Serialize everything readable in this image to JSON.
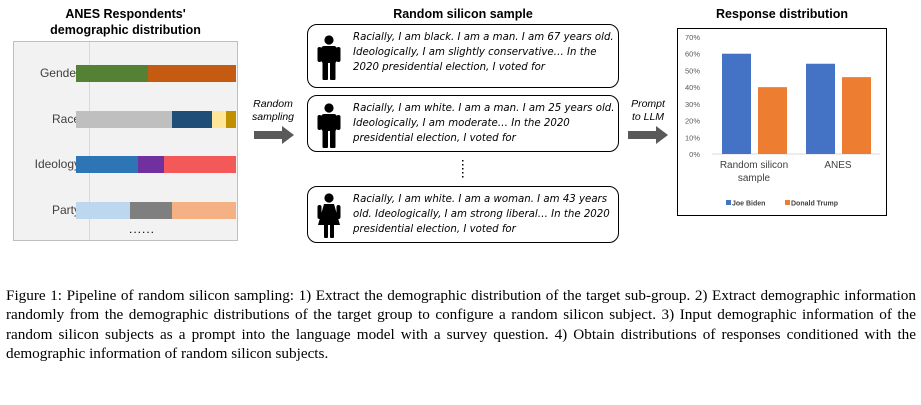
{
  "left": {
    "title_line1": "ANES Respondents'",
    "title_line2": "demographic distribution",
    "rows": [
      {
        "label": "Gender",
        "segments": [
          {
            "share": 0.45,
            "color": "#548235"
          },
          {
            "share": 0.55,
            "color": "#c55a11"
          }
        ]
      },
      {
        "label": "Race",
        "segments": [
          {
            "share": 0.6,
            "color": "#bfbfbf"
          },
          {
            "share": 0.25,
            "color": "#1f4e79"
          },
          {
            "share": 0.09,
            "color": "#ffe699"
          },
          {
            "share": 0.06,
            "color": "#bf9000"
          }
        ]
      },
      {
        "label": "Ideology",
        "segments": [
          {
            "share": 0.39,
            "color": "#2e75b6"
          },
          {
            "share": 0.16,
            "color": "#7030a0"
          },
          {
            "share": 0.45,
            "color": "#f4595a"
          }
        ]
      },
      {
        "label": "Party",
        "segments": [
          {
            "share": 0.34,
            "color": "#bdd7ee"
          },
          {
            "share": 0.26,
            "color": "#7f7f7f"
          },
          {
            "share": 0.4,
            "color": "#f4b183"
          }
        ]
      }
    ],
    "more": "......"
  },
  "arrow1": {
    "line1": "Random",
    "line2": "sampling"
  },
  "middle": {
    "title": "Random silicon sample",
    "samples": [
      {
        "gender": "man",
        "text": "Racially, I am black. I am a man. I am 67 years old. Ideologically, I am slightly conservative… In the 2020 presidential election, I voted for"
      },
      {
        "gender": "man",
        "text": "Racially, I am white. I am a man. I am 25 years old. Ideologically, I am moderate… In the 2020 presidential election, I voted for"
      },
      {
        "gender": "woman",
        "text": "Racially, I am white. I am a woman. I am 43 years old. Ideologically, I am strong liberal… In the 2020 presidential election, I voted for"
      }
    ]
  },
  "arrow2": {
    "line1": "Prompt",
    "line2": "to LLM"
  },
  "chart_title": "Response distribution",
  "chart_data": {
    "type": "bar",
    "title": "Response distribution",
    "categories": [
      "Random silicon sample",
      "ANES"
    ],
    "category_lines": [
      [
        "Random silicon",
        "sample"
      ],
      [
        "ANES"
      ]
    ],
    "series": [
      {
        "name": "Joe Biden",
        "values": [
          60,
          54
        ],
        "color": "#4472c4"
      },
      {
        "name": "Donald Trump",
        "values": [
          40,
          46
        ],
        "color": "#ed7d31"
      }
    ],
    "yticks": [
      "0%",
      "10%",
      "20%",
      "30%",
      "40%",
      "50%",
      "60%",
      "70%"
    ],
    "ylim": [
      0,
      70
    ],
    "grid": false,
    "legend": "bottom"
  },
  "caption": "Figure 1: Pipeline of random silicon sampling: 1) Extract the demographic distribution of the target sub-group. 2) Extract demographic information randomly from the demographic distributions of the target group to configure a random silicon subject. 3) Input demographic information of the random silicon subjects as a prompt into the language model with a survey question. 4) Obtain distributions of responses conditioned with the demographic information of random silicon subjects."
}
